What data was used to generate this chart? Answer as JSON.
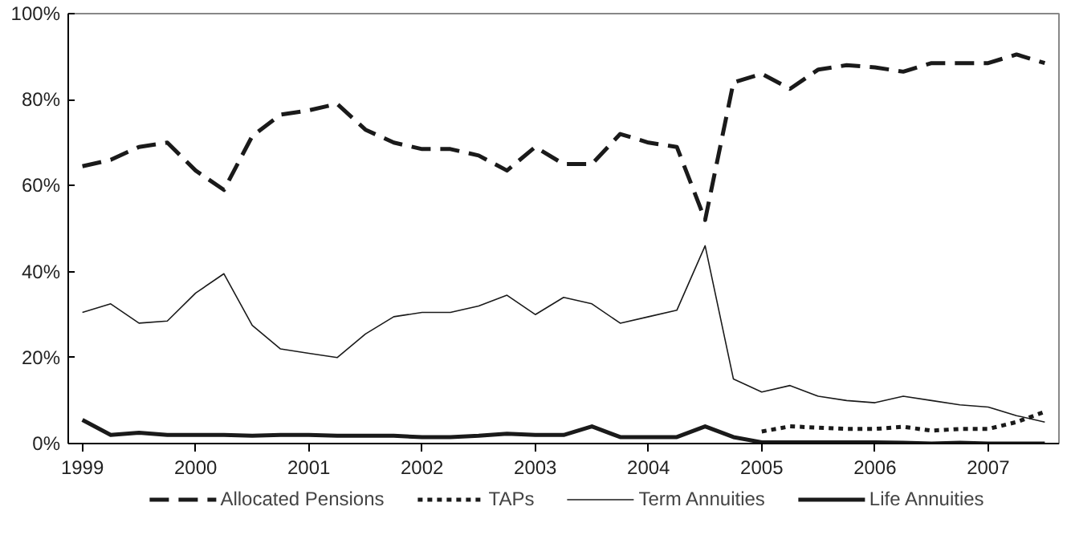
{
  "chart_data": {
    "type": "line",
    "x": [
      1999,
      1999.25,
      1999.5,
      1999.75,
      2000,
      2000.25,
      2000.5,
      2000.75,
      2001,
      2001.25,
      2001.5,
      2001.75,
      2002,
      2002.25,
      2002.5,
      2002.75,
      2003,
      2003.25,
      2003.5,
      2003.75,
      2004,
      2004.25,
      2004.5,
      2004.75,
      2005,
      2005.25,
      2005.5,
      2005.75,
      2006,
      2006.25,
      2006.5,
      2006.75,
      2007,
      2007.25,
      2007.5
    ],
    "series": [
      {
        "name": "Allocated Pensions",
        "color": "#1a1a1a",
        "line_style": "dashed",
        "values": [
          64.5,
          66,
          69,
          70,
          63.5,
          59,
          71.5,
          76.5,
          77.5,
          79,
          73,
          70,
          68.5,
          68.5,
          67,
          63.5,
          69,
          65,
          65,
          72,
          70,
          69,
          52,
          84,
          86,
          82.5,
          87,
          88,
          87.5,
          86.5,
          88.5,
          88.5,
          88.5,
          90.5,
          88.5
        ]
      },
      {
        "name": "TAPs",
        "color": "#1a1a1a",
        "line_style": "dotted",
        "values": [
          null,
          null,
          null,
          null,
          null,
          null,
          null,
          null,
          null,
          null,
          null,
          null,
          null,
          null,
          null,
          null,
          null,
          null,
          null,
          null,
          null,
          null,
          null,
          null,
          2.8,
          4,
          3.7,
          3.4,
          3.4,
          3.9,
          3,
          3.4,
          3.4,
          5,
          7.4
        ]
      },
      {
        "name": "Term Annuities",
        "color": "#1a1a1a",
        "line_style": "solid",
        "values": [
          30.5,
          32.5,
          28,
          28.5,
          35,
          39.5,
          27.5,
          22,
          21,
          20,
          25.5,
          29.5,
          30.5,
          30.5,
          32,
          34.5,
          30,
          34,
          32.5,
          28,
          29.5,
          31,
          46,
          15,
          12,
          13.5,
          11,
          10,
          9.5,
          11,
          10,
          9,
          8.5,
          6.5,
          5
        ]
      },
      {
        "name": "Life Annuities",
        "color": "#1a1a1a",
        "line_style": "solid",
        "values": [
          5.5,
          2,
          2.5,
          2,
          2,
          2,
          1.8,
          2,
          2,
          1.8,
          1.8,
          1.8,
          1.5,
          1.5,
          1.8,
          2.3,
          2,
          2,
          4,
          1.5,
          1.5,
          1.5,
          4,
          1.5,
          0.3,
          0.3,
          0.3,
          0.3,
          0.3,
          0.2,
          0,
          0.2,
          0,
          0,
          0
        ]
      }
    ],
    "xlim": [
      1998.875,
      2007.625
    ],
    "xticks": [
      1999,
      2000,
      2001,
      2002,
      2003,
      2004,
      2005,
      2006,
      2007
    ],
    "ylim": [
      0,
      100
    ],
    "yticks": [
      {
        "value": 0,
        "label": "0%"
      },
      {
        "value": 20,
        "label": "20%"
      },
      {
        "value": 40,
        "label": "40%"
      },
      {
        "value": 60,
        "label": "60%"
      },
      {
        "value": 80,
        "label": "80%"
      },
      {
        "value": 100,
        "label": "100%"
      }
    ],
    "grid": false,
    "legend": "bottom",
    "marker": "none"
  }
}
